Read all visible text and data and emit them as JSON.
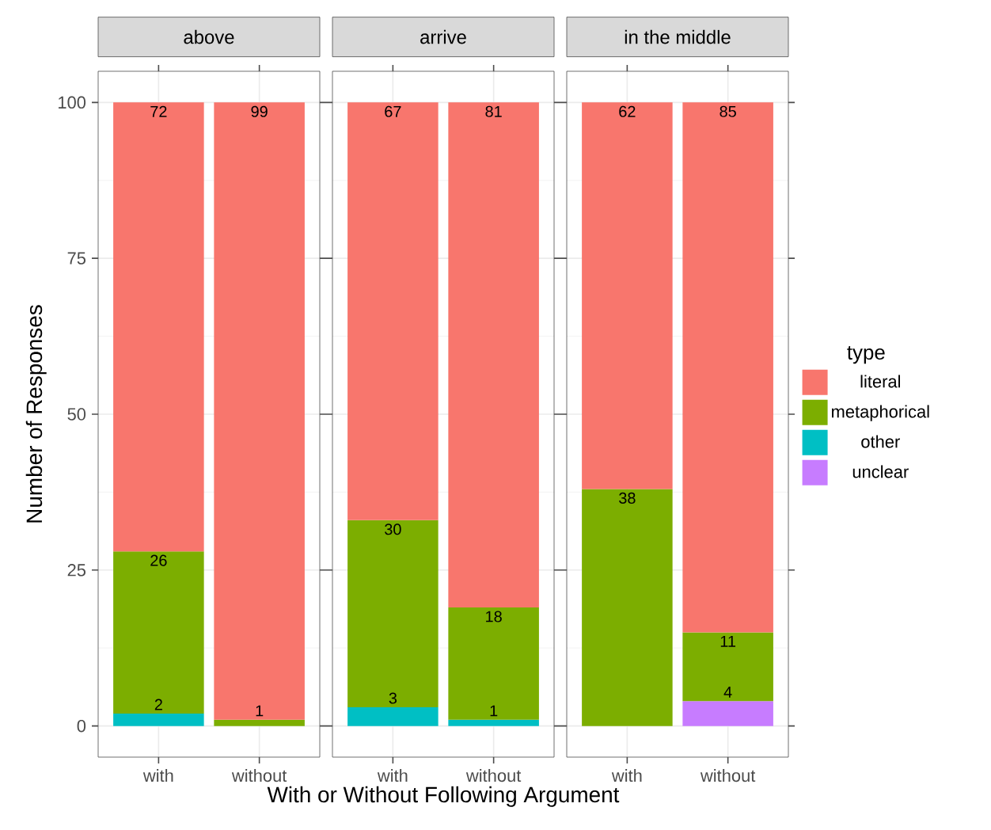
{
  "chart_data": [
    {
      "type": "bar",
      "title": "above",
      "ylabel": "Number of Responses",
      "categories": [
        "with",
        "without"
      ],
      "stacked": true,
      "data_labels": true,
      "grid": true,
      "ylim": [
        -5,
        105
      ],
      "yticks": [
        0,
        25,
        50,
        75,
        100
      ],
      "series": [
        {
          "color": "#c77cff",
          "values": [
            null,
            null
          ]
        },
        {
          "color": "#00bfc4",
          "values": [
            2,
            null
          ]
        },
        {
          "color": "#7cae00",
          "values": [
            26,
            1
          ]
        },
        {
          "color": "#f8766d",
          "values": [
            72,
            99
          ]
        }
      ]
    },
    {
      "type": "bar",
      "title": "arrive",
      "xlabel": "With or Without Following Argument",
      "categories": [
        "with",
        "without"
      ],
      "stacked": true,
      "data_labels": true,
      "grid": true,
      "ylim": [
        -5,
        105
      ],
      "yticks": [
        0,
        25,
        50,
        75,
        100
      ],
      "tick_labels": "x",
      "series": [
        {
          "color": "#c77cff",
          "values": [
            null,
            null
          ]
        },
        {
          "color": "#00bfc4",
          "values": [
            3,
            1
          ]
        },
        {
          "color": "#7cae00",
          "values": [
            30,
            18
          ]
        },
        {
          "color": "#f8766d",
          "values": [
            67,
            81
          ]
        }
      ]
    },
    {
      "type": "bar",
      "title": "in the middle",
      "categories": [
        "with",
        "without"
      ],
      "stacked": true,
      "data_labels": true,
      "grid": true,
      "ylim": [
        -5,
        105
      ],
      "yticks": [
        0,
        25,
        50,
        75,
        100
      ],
      "tick_labels": "x",
      "legend": "right",
      "legend_title": "type",
      "series": [
        {
          "name": "unclear",
          "color": "#c77cff",
          "values": [
            null,
            4
          ]
        },
        {
          "name": "other",
          "color": "#00bfc4",
          "values": [
            null,
            null
          ]
        },
        {
          "name": "metaphorical",
          "color": "#7cae00",
          "values": [
            38,
            11
          ]
        },
        {
          "name": "literal",
          "color": "#f8766d",
          "values": [
            62,
            85
          ]
        }
      ]
    }
  ]
}
